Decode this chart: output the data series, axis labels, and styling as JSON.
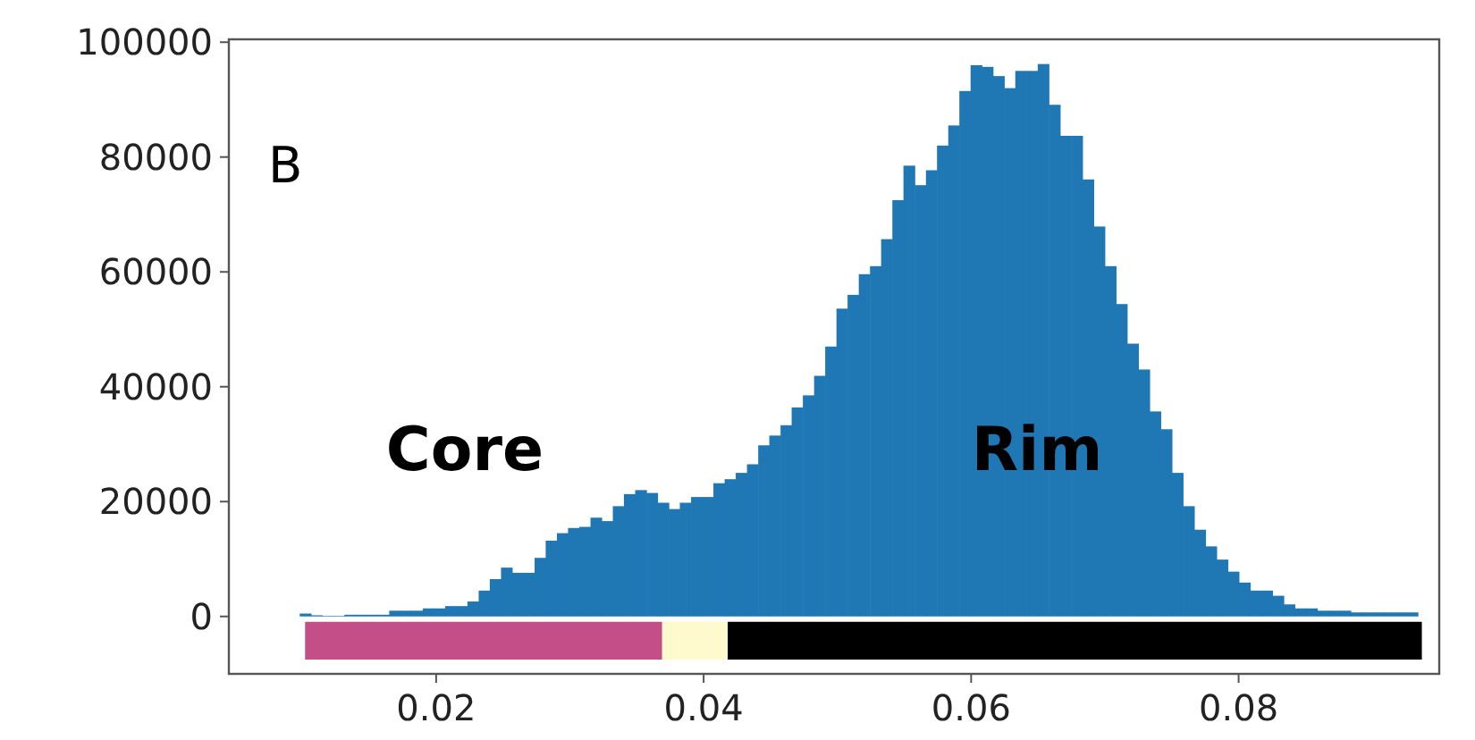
{
  "chart_data": {
    "type": "histogram",
    "color": "#1f77b4",
    "bins": [
      0.0098,
      0.01064,
      0.01147,
      0.01231,
      0.01314,
      0.01398,
      0.01482,
      0.01565,
      0.01649,
      0.01732,
      0.01816,
      0.019,
      0.01983,
      0.02067,
      0.0215,
      0.02234,
      0.02318,
      0.02401,
      0.02485,
      0.02568,
      0.02652,
      0.02736,
      0.02819,
      0.02903,
      0.02986,
      0.0307,
      0.03154,
      0.03237,
      0.03321,
      0.03404,
      0.03488,
      0.03572,
      0.03655,
      0.03739,
      0.03822,
      0.03906,
      0.0399,
      0.04073,
      0.04157,
      0.0424,
      0.04324,
      0.04408,
      0.04491,
      0.04575,
      0.04658,
      0.04742,
      0.04826,
      0.04909,
      0.04993,
      0.05076,
      0.0516,
      0.05244,
      0.05327,
      0.05411,
      0.05494,
      0.05578,
      0.05662,
      0.05745,
      0.05829,
      0.05912,
      0.05996,
      0.0608,
      0.06163,
      0.06247,
      0.0633,
      0.06414,
      0.06498,
      0.06581,
      0.06665,
      0.06748,
      0.06832,
      0.06916,
      0.06999,
      0.07083,
      0.07166,
      0.0725,
      0.07334,
      0.07417,
      0.07501,
      0.07584,
      0.07668,
      0.07752,
      0.07835,
      0.07919,
      0.08002,
      0.08086,
      0.0817,
      0.08253,
      0.08337,
      0.0842,
      0.08504,
      0.08588,
      0.08671,
      0.08755,
      0.08838,
      0.08922,
      0.09006,
      0.09089,
      0.09173,
      0.09256,
      0.0934
    ],
    "values": [
      500,
      200,
      100,
      100,
      300,
      300,
      300,
      300,
      1000,
      1000,
      1000,
      1400,
      1400,
      1800,
      1800,
      2600,
      4500,
      6500,
      8500,
      7600,
      7600,
      10200,
      13200,
      14500,
      15400,
      15600,
      17200,
      16600,
      19200,
      21300,
      22000,
      21500,
      19800,
      18700,
      19800,
      20800,
      20800,
      23200,
      23900,
      25000,
      26500,
      29800,
      31500,
      33300,
      36400,
      38500,
      41900,
      47000,
      53600,
      56000,
      59600,
      61000,
      65700,
      72500,
      78500,
      75100,
      77700,
      82000,
      85500,
      91500,
      96000,
      95700,
      94100,
      92000,
      95000,
      95000,
      96200,
      89100,
      83700,
      83700,
      76100,
      67900,
      61000,
      54400,
      47500,
      43000,
      35700,
      32600,
      25000,
      19200,
      15100,
      12200,
      9900,
      7800,
      5900,
      4500,
      4500,
      3600,
      2100,
      1400,
      1400,
      1000,
      1000,
      1000,
      700,
      700,
      700,
      700,
      700,
      700
    ],
    "xlim": [
      0.0045,
      0.095
    ],
    "ylim": [
      -10000,
      100500
    ],
    "xticks": [
      0.02,
      0.04,
      0.06,
      0.08
    ],
    "yticks": [
      0,
      20000,
      40000,
      60000,
      80000,
      100000
    ],
    "bands": [
      {
        "axis": "x",
        "from": 0.0102,
        "to": 0.0369,
        "color": "#c44e88"
      },
      {
        "axis": "x",
        "from": 0.0369,
        "to": 0.0418,
        "color": "#fffacd"
      },
      {
        "axis": "x",
        "from": 0.0418,
        "to": 0.0937,
        "color": "#000000"
      }
    ],
    "annotations": [
      "B",
      "Core",
      "Rim"
    ]
  }
}
